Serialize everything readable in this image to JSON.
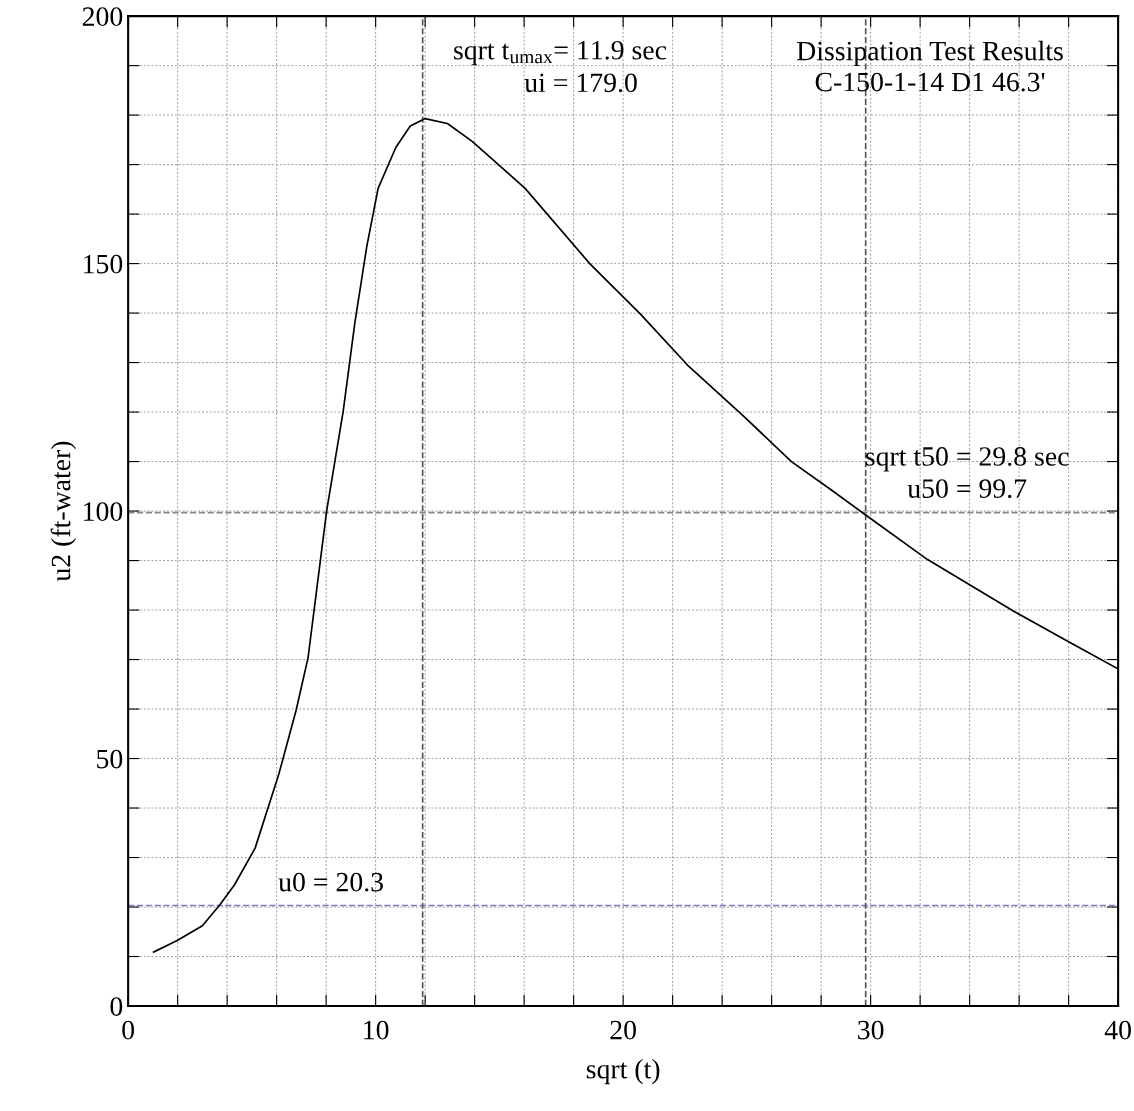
{
  "chart_data": {
    "type": "line",
    "title": "Dissipation Test Results\nC-150-1-14 D1 46.3'",
    "xlabel": "sqrt (t)",
    "ylabel": "u2 (ft-water)",
    "series": [
      {
        "color": "#000000",
        "x": [
          1.03,
          2,
          3,
          3.7,
          4.3,
          5.13,
          6.08,
          6.79,
          7.27,
          8.02,
          8.69,
          9.16,
          9.64,
          10.1,
          10.82,
          11.4,
          12.0,
          12.9,
          13.9,
          16.04,
          18.65,
          20.7,
          22.6,
          24.8,
          26.8,
          28.4,
          29.8,
          32.3,
          35.8,
          38,
          40.0
        ],
        "values": [
          10.9,
          13.3,
          16.2,
          20.4,
          24.5,
          31.9,
          46.7,
          59.8,
          70.4,
          100,
          120.2,
          138,
          153.4,
          165.2,
          173.5,
          177.8,
          179.3,
          178.3,
          174.7,
          165.2,
          150,
          139.8,
          129.5,
          119.5,
          110,
          104.3,
          99.2,
          90.2,
          79.7,
          73.6,
          68.1
        ]
      }
    ],
    "xlim": [
      0,
      40
    ],
    "ylim": [
      0,
      200
    ],
    "xticks": [
      0,
      {
        "value": 2,
        "label": null
      },
      {
        "value": 4,
        "label": null
      },
      {
        "value": 6,
        "label": null
      },
      {
        "value": 8,
        "label": null
      },
      10,
      {
        "value": 12,
        "label": null
      },
      {
        "value": 14,
        "label": null
      },
      {
        "value": 16,
        "label": null
      },
      {
        "value": 18,
        "label": null
      },
      20,
      {
        "value": 22,
        "label": null
      },
      {
        "value": 24,
        "label": null
      },
      {
        "value": 26,
        "label": null
      },
      {
        "value": 28,
        "label": null
      },
      30,
      {
        "value": 32,
        "label": null
      },
      {
        "value": 34,
        "label": null
      },
      {
        "value": 36,
        "label": null
      },
      {
        "value": 38,
        "label": null
      },
      40
    ],
    "yticks": [
      0,
      {
        "value": 10,
        "label": null
      },
      {
        "value": 20,
        "label": null
      },
      {
        "value": 30,
        "label": null
      },
      {
        "value": 40,
        "label": null
      },
      50,
      {
        "value": 60,
        "label": null
      },
      {
        "value": 70,
        "label": null
      },
      {
        "value": 80,
        "label": null
      },
      {
        "value": 90,
        "label": null
      },
      100,
      {
        "value": 110,
        "label": null
      },
      {
        "value": 120,
        "label": null
      },
      {
        "value": 130,
        "label": null
      },
      {
        "value": 140,
        "label": null
      },
      150,
      {
        "value": 160,
        "label": null
      },
      {
        "value": 170,
        "label": null
      },
      {
        "value": 180,
        "label": null
      },
      {
        "value": 190,
        "label": null
      },
      200
    ],
    "grid": true,
    "ref_lines": [
      {
        "axis": "y",
        "value": 20.3,
        "label": "u0 = 20.3",
        "color": "#7b7bc8",
        "line_style": "dashed"
      },
      {
        "axis": "x",
        "value": 11.9,
        "label": "sqrt t$_{umax}$= 11.9 sec",
        "color": "#555555",
        "line_style": "dashed"
      },
      {
        "axis": "x",
        "value": 29.8,
        "label": "sqrt t50 = 29.8 sec",
        "color": "#555555",
        "line_style": "dashed"
      },
      {
        "axis": "y",
        "value": 99.7,
        "color": "#888888",
        "line_style": "dashed"
      }
    ],
    "annotations": [
      "ui = 179.0",
      "u50 = 99.7"
    ]
  }
}
